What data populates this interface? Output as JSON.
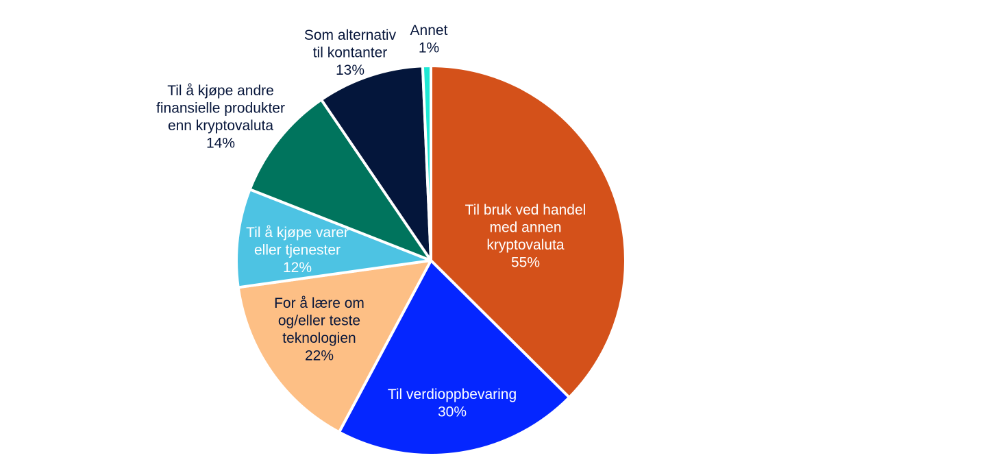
{
  "chart_data": {
    "type": "pie",
    "title": "",
    "legend": "none",
    "slices": [
      {
        "label": [
          "Til bruk ved handel",
          "med annen",
          "kryptovaluta"
        ],
        "value_label": "55%",
        "value": 55,
        "color": "#d4511a",
        "text_color": "#ffffff"
      },
      {
        "label": [
          "Til verdioppbevaring"
        ],
        "value_label": "30%",
        "value": 30,
        "color": "#0526ff",
        "text_color": "#ffffff"
      },
      {
        "label": [
          "For å lære om",
          "og/eller teste",
          "teknologien"
        ],
        "value_label": "22%",
        "value": 22,
        "color": "#fdbf85",
        "text_color": "#06153a"
      },
      {
        "label": [
          "Til å kjøpe varer",
          "eller tjenester"
        ],
        "value_label": "12%",
        "value": 12,
        "color": "#4dc3e3",
        "text_color": "#ffffff"
      },
      {
        "label": [
          "Til å kjøpe andre",
          "finansielle produkter",
          "enn kryptovaluta"
        ],
        "value_label": "14%",
        "value": 14,
        "color": "#00745d",
        "text_color": "#06153a"
      },
      {
        "label": [
          "Som alternativ",
          "til kontanter"
        ],
        "value_label": "13%",
        "value": 13,
        "color": "#04163b",
        "text_color": "#06153a"
      },
      {
        "label": [
          "Annet"
        ],
        "value_label": "1%",
        "value": 1,
        "color": "#1ee8d4",
        "text_color": "#06153a"
      }
    ]
  }
}
